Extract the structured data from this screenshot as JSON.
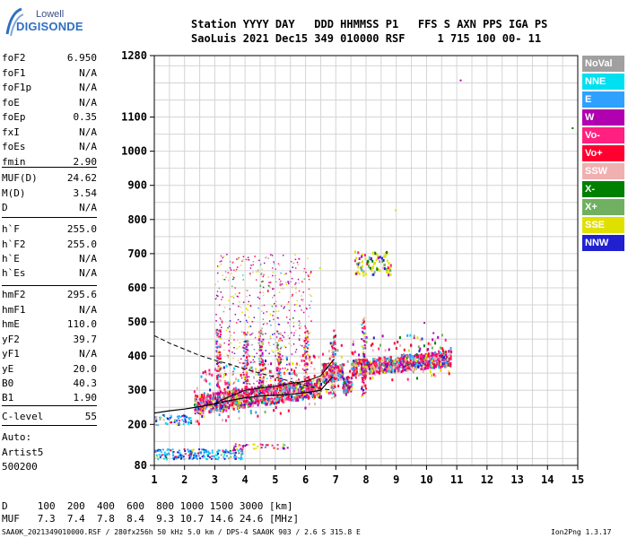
{
  "logo": {
    "line1": "Lowell",
    "line2": "DIGISONDE"
  },
  "header": {
    "labels": "Station YYYY DAY   DDD HHMMSS P1   FFS S AXN PPS IGA PS",
    "values": "SaoLuis 2021 Dec15 349 010000 RSF     1 715 100 00- 11"
  },
  "params": [
    {
      "k": "foF2",
      "v": "6.950"
    },
    {
      "k": "foF1",
      "v": "N/A"
    },
    {
      "k": "foF1p",
      "v": "N/A"
    },
    {
      "k": "foE",
      "v": "N/A"
    },
    {
      "k": "foEp",
      "v": "0.35"
    },
    {
      "k": "fxI",
      "v": "N/A"
    },
    {
      "k": "foEs",
      "v": "N/A"
    },
    {
      "k": "fmin",
      "v": "2.90"
    },
    {
      "k": "MUF(D)",
      "v": "24.62"
    },
    {
      "k": "M(D)",
      "v": "3.54"
    },
    {
      "k": "D",
      "v": "N/A"
    },
    {
      "k": "h`F",
      "v": "255.0"
    },
    {
      "k": "h`F2",
      "v": "255.0"
    },
    {
      "k": "h`E",
      "v": "N/A"
    },
    {
      "k": "h`Es",
      "v": "N/A"
    },
    {
      "k": "hmF2",
      "v": "295.6"
    },
    {
      "k": "hmF1",
      "v": "N/A"
    },
    {
      "k": "hmE",
      "v": "110.0"
    },
    {
      "k": "yF2",
      "v": "39.7"
    },
    {
      "k": "yF1",
      "v": "N/A"
    },
    {
      "k": "yE",
      "v": "20.0"
    },
    {
      "k": "B0",
      "v": "40.3"
    },
    {
      "k": "B1",
      "v": "1.90"
    },
    {
      "k": "C-level",
      "v": "55"
    }
  ],
  "auto": {
    "line1": "Auto:",
    "line2": "Artist5",
    "line3": "500200"
  },
  "legend": [
    {
      "label": "NoVal",
      "color": "#a0a0a0"
    },
    {
      "label": "NNE",
      "color": "#00e0f0"
    },
    {
      "label": "E",
      "color": "#30a0ff"
    },
    {
      "label": "W",
      "color": "#b000b0"
    },
    {
      "label": "Vo-",
      "color": "#ff2080"
    },
    {
      "label": "Vo+",
      "color": "#ff0030"
    },
    {
      "label": "SSW",
      "color": "#f0b0b0"
    },
    {
      "label": "X-",
      "color": "#008000"
    },
    {
      "label": "X+",
      "color": "#70b060"
    },
    {
      "label": "SSE",
      "color": "#e0e000"
    },
    {
      "label": "NNW",
      "color": "#2020d0"
    }
  ],
  "footer": {
    "d_row": "D     100  200  400  600  800 1000 1500 3000 [km]",
    "muf_row": "MUF   7.3  7.4  7.8  8.4  9.3 10.7 14.6 24.6 [MHz]",
    "file_info": "SAA0K_2021349010000.RSF / 280fx256h 50 kHz 5.0 km / DPS-4 SAA0K 903 / 2.6 S 315.8 E",
    "version": "Ion2Png 1.3.17"
  },
  "chart_data": {
    "type": "scatter",
    "x_ticks": [
      "1",
      "2",
      "3",
      "4",
      "5",
      "6",
      "7",
      "8",
      "9",
      "10",
      "11",
      "12",
      "13",
      "14",
      "15"
    ],
    "y_ticks": [
      "80",
      "200",
      "300",
      "400",
      "500",
      "600",
      "700",
      "800",
      "900",
      "1000",
      "1100",
      "1280"
    ],
    "xlim": [
      1,
      15
    ],
    "ylim": [
      80,
      1280
    ],
    "grid": true,
    "trace_solid": {
      "x": [
        1.0,
        1.5,
        2.0,
        2.5,
        3.0,
        3.5,
        4.0,
        4.5,
        5.0,
        5.5,
        6.0,
        6.5,
        6.9
      ],
      "y": [
        233,
        240,
        245,
        252,
        260,
        270,
        278,
        283,
        285,
        288,
        293,
        300,
        340
      ]
    },
    "trace_dashed": {
      "x": [
        1.0,
        1.5,
        2.0,
        2.5,
        3.0,
        3.5,
        4.0,
        4.5,
        5.0,
        5.5,
        6.0,
        6.5,
        6.9
      ],
      "y": [
        460,
        438,
        420,
        402,
        388,
        376,
        362,
        350,
        338,
        326,
        314,
        305,
        300
      ]
    },
    "trace_virtual": {
      "x": [
        3.0,
        3.5,
        4.0,
        4.5,
        5.0,
        5.5,
        6.0,
        6.5,
        6.95
      ],
      "y": [
        262,
        282,
        300,
        306,
        312,
        320,
        326,
        342,
        392
      ]
    }
  }
}
